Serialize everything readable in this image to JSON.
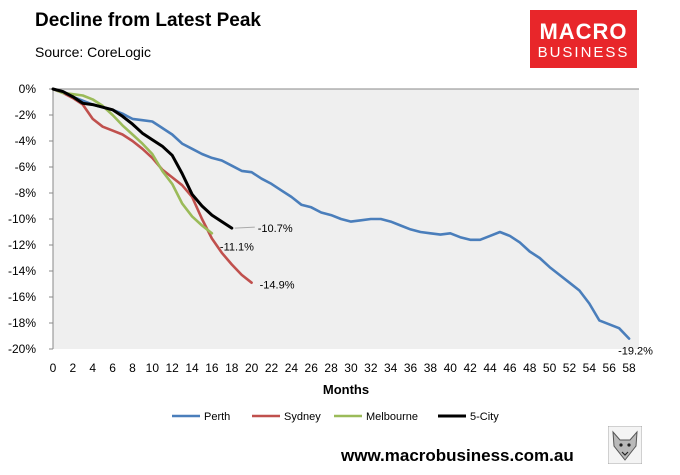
{
  "header": {
    "title": "Decline from Latest Peak",
    "source": "Source: CoreLogic"
  },
  "logo": {
    "line1": "MACRO",
    "line2": "BUSINESS"
  },
  "footer": {
    "website": "www.macrobusiness.com.au",
    "mascot_icon": "fox-mascot-icon"
  },
  "chart_data": {
    "type": "line",
    "title": "Decline from Latest Peak",
    "xlabel": "Months",
    "ylabel": "",
    "xlim": [
      0,
      59
    ],
    "ylim": [
      -20,
      0
    ],
    "x_ticks": [
      0,
      2,
      4,
      6,
      8,
      10,
      12,
      14,
      16,
      18,
      20,
      22,
      24,
      26,
      28,
      30,
      32,
      34,
      36,
      38,
      40,
      42,
      44,
      46,
      48,
      50,
      52,
      54,
      56,
      58
    ],
    "y_ticks": [
      0,
      -2,
      -4,
      -6,
      -8,
      -10,
      -12,
      -14,
      -16,
      -18,
      -20
    ],
    "y_tick_labels": [
      "0%",
      "-2%",
      "-4%",
      "-6%",
      "-8%",
      "-10%",
      "-12%",
      "-14%",
      "-16%",
      "-18%",
      "-20%"
    ],
    "grid": false,
    "legend": "bottom",
    "series": [
      {
        "name": "Perth",
        "color": "#4a7ebb",
        "values": [
          0,
          -0.2,
          -0.6,
          -0.9,
          -1.2,
          -1.4,
          -1.6,
          -1.9,
          -2.3,
          -2.4,
          -2.5,
          -3.0,
          -3.5,
          -4.2,
          -4.6,
          -5.0,
          -5.3,
          -5.5,
          -5.9,
          -6.3,
          -6.4,
          -6.9,
          -7.3,
          -7.8,
          -8.3,
          -8.9,
          -9.1,
          -9.5,
          -9.7,
          -10.0,
          -10.2,
          -10.1,
          -10.0,
          -10.0,
          -10.2,
          -10.5,
          -10.8,
          -11.0,
          -11.1,
          -11.2,
          -11.1,
          -11.4,
          -11.6,
          -11.6,
          -11.3,
          -11.0,
          -11.3,
          -11.8,
          -12.5,
          -13.0,
          -13.7,
          -14.3,
          -14.9,
          -15.5,
          -16.5,
          -17.8,
          -18.1,
          -18.4,
          -19.2
        ],
        "end_label": "-19.2%"
      },
      {
        "name": "Sydney",
        "color": "#c0504d",
        "values": [
          0,
          -0.3,
          -0.7,
          -1.2,
          -2.3,
          -2.9,
          -3.2,
          -3.5,
          -4.0,
          -4.6,
          -5.3,
          -6.2,
          -6.8,
          -7.4,
          -8.3,
          -10.0,
          -11.5,
          -12.6,
          -13.5,
          -14.3,
          -14.9
        ],
        "end_label": "-14.9%"
      },
      {
        "name": "Melbourne",
        "color": "#9bbb59",
        "values": [
          0,
          -0.3,
          -0.4,
          -0.5,
          -0.8,
          -1.3,
          -2.0,
          -2.8,
          -3.5,
          -4.2,
          -5.0,
          -6.3,
          -7.3,
          -8.8,
          -9.8,
          -10.5,
          -11.1
        ],
        "end_label": "-11.1%"
      },
      {
        "name": "5-City",
        "color": "#000000",
        "values": [
          0,
          -0.2,
          -0.6,
          -1.1,
          -1.2,
          -1.4,
          -1.6,
          -2.1,
          -2.7,
          -3.4,
          -3.9,
          -4.4,
          -5.1,
          -6.5,
          -8.1,
          -9.0,
          -9.7,
          -10.2,
          -10.7
        ],
        "end_label": "-10.7%"
      }
    ]
  }
}
